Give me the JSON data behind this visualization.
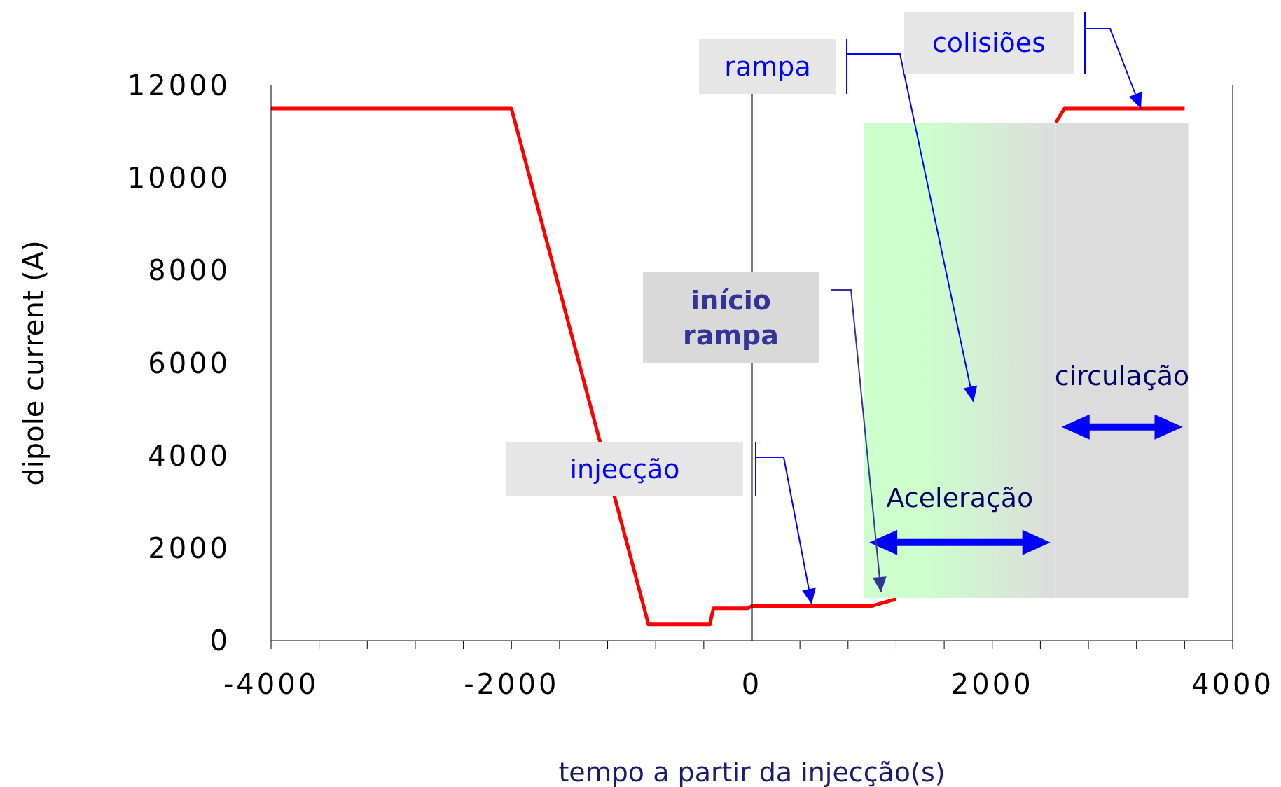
{
  "chart_data": {
    "type": "line",
    "xlabel": "tempo a partir da injecção(s)",
    "ylabel": "dipole current (A)",
    "x": [
      -4000,
      -2000,
      -860,
      -350,
      -320,
      -30,
      0,
      1000,
      1200,
      1250,
      2530,
      2600,
      3600
    ],
    "series": [
      {
        "color": "#ff0000",
        "values": [
          11500,
          11500,
          350,
          350,
          700,
          700,
          750,
          750,
          900,
          null,
          11200,
          11500,
          11500
        ]
      }
    ],
    "xlim": [
      -4000,
      4000
    ],
    "xticks": [
      -4000,
      {
        "value": -3600,
        "label": null
      },
      {
        "value": -3200,
        "label": null
      },
      {
        "value": -2800,
        "label": null
      },
      {
        "value": -2400,
        "label": null
      },
      -2000,
      {
        "value": -1600,
        "label": null
      },
      {
        "value": -1200,
        "label": null
      },
      {
        "value": -800,
        "label": null
      },
      {
        "value": -400,
        "label": null
      },
      0,
      {
        "value": 400,
        "label": null
      },
      {
        "value": 800,
        "label": null
      },
      {
        "value": 1200,
        "label": null
      },
      {
        "value": 1600,
        "label": null
      },
      2000,
      {
        "value": 2400,
        "label": null
      },
      {
        "value": 2800,
        "label": null
      },
      {
        "value": 3200,
        "label": null
      },
      {
        "value": 3600,
        "label": null
      },
      4000
    ],
    "ylim": [
      0,
      12000
    ],
    "yticks": [
      0,
      2000,
      4000,
      6000,
      8000,
      10000,
      12000
    ],
    "ref_lines": [
      {
        "axis": "x",
        "value": 0,
        "color": "#000000"
      }
    ],
    "bands": [
      {
        "axis": "x",
        "from": 930,
        "to": 2530,
        "label": "Aceleração",
        "color": "#ccffcc"
      },
      {
        "axis": "x",
        "from": 2530,
        "to": 3630,
        "label": "circulação",
        "color": "#dcdcdc"
      }
    ],
    "annotations": [
      "injecção",
      "início rampa",
      "rampa",
      "colisiões"
    ],
    "grid": false,
    "marker": "none",
    "line_style": "solid"
  }
}
